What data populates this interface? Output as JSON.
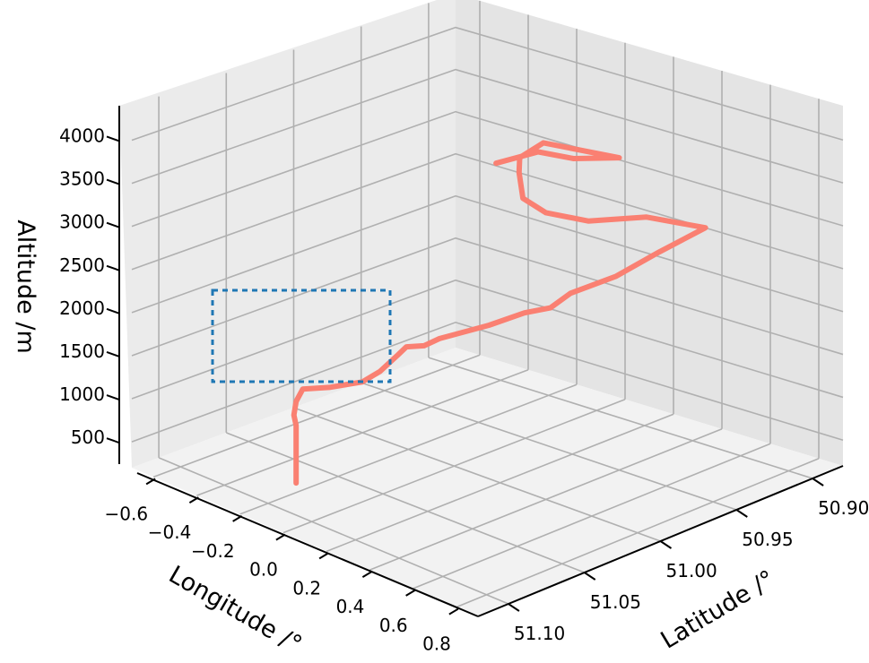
{
  "chart_data": {
    "type": "line3d",
    "axes": {
      "x": {
        "label": "Longitude /°",
        "ticks": [
          -0.6,
          -0.4,
          -0.2,
          0.0,
          0.2,
          0.4,
          0.6,
          0.8
        ],
        "tick_labels": [
          "−0.6",
          "−0.4",
          "−0.2",
          "0.0",
          "0.2",
          "0.4",
          "0.6",
          "0.8"
        ]
      },
      "y": {
        "label": "Latitude /°",
        "ticks": [
          50.9,
          50.95,
          51.0,
          51.05,
          51.1
        ],
        "tick_labels": [
          "50.90",
          "50.95",
          "51.00",
          "51.05",
          "51.10"
        ]
      },
      "z": {
        "label": "Altitude /m",
        "ticks": [
          500,
          1000,
          1500,
          2000,
          2500,
          3000,
          3500,
          4000
        ],
        "tick_labels": [
          "500",
          "1000",
          "1500",
          "2000",
          "2500",
          "3000",
          "3500",
          "4000"
        ]
      }
    },
    "grid": true,
    "series": [
      {
        "color": "#fa8072",
        "points": [
          [
            -0.2,
            51.08,
            300
          ],
          [
            -0.2,
            51.08,
            900
          ],
          [
            -0.21,
            51.08,
            1000
          ],
          [
            -0.2,
            51.08,
            1150
          ],
          [
            -0.17,
            51.08,
            1300
          ],
          [
            -0.05,
            51.08,
            1400
          ],
          [
            0.1,
            51.08,
            1550
          ],
          [
            0.18,
            51.08,
            1700
          ],
          [
            0.26,
            51.08,
            1900
          ],
          [
            0.3,
            51.08,
            2000
          ],
          [
            0.38,
            51.08,
            2050
          ],
          [
            0.45,
            51.08,
            2150
          ],
          [
            0.54,
            51.06,
            2250
          ],
          [
            0.5,
            51.03,
            2250
          ],
          [
            0.42,
            51.0,
            2150
          ],
          [
            0.38,
            50.98,
            2200
          ],
          [
            0.45,
            50.96,
            2350
          ],
          [
            0.57,
            50.95,
            2650
          ],
          [
            0.64,
            50.93,
            2900
          ],
          [
            0.58,
            50.96,
            3050
          ],
          [
            0.52,
            50.99,
            3050
          ],
          [
            0.4,
            51.0,
            3100
          ],
          [
            0.3,
            51.0,
            3200
          ],
          [
            0.22,
            50.99,
            3400
          ],
          [
            0.16,
            50.98,
            3500
          ],
          [
            0.2,
            50.97,
            3650
          ],
          [
            0.4,
            50.95,
            3550
          ],
          [
            0.33,
            50.97,
            3550
          ],
          [
            0.24,
            50.98,
            3600
          ],
          [
            0.12,
            50.99,
            3450
          ]
        ]
      }
    ],
    "annotation": {
      "shape": "dashed-rectangle",
      "color": "#1f77b4"
    }
  }
}
